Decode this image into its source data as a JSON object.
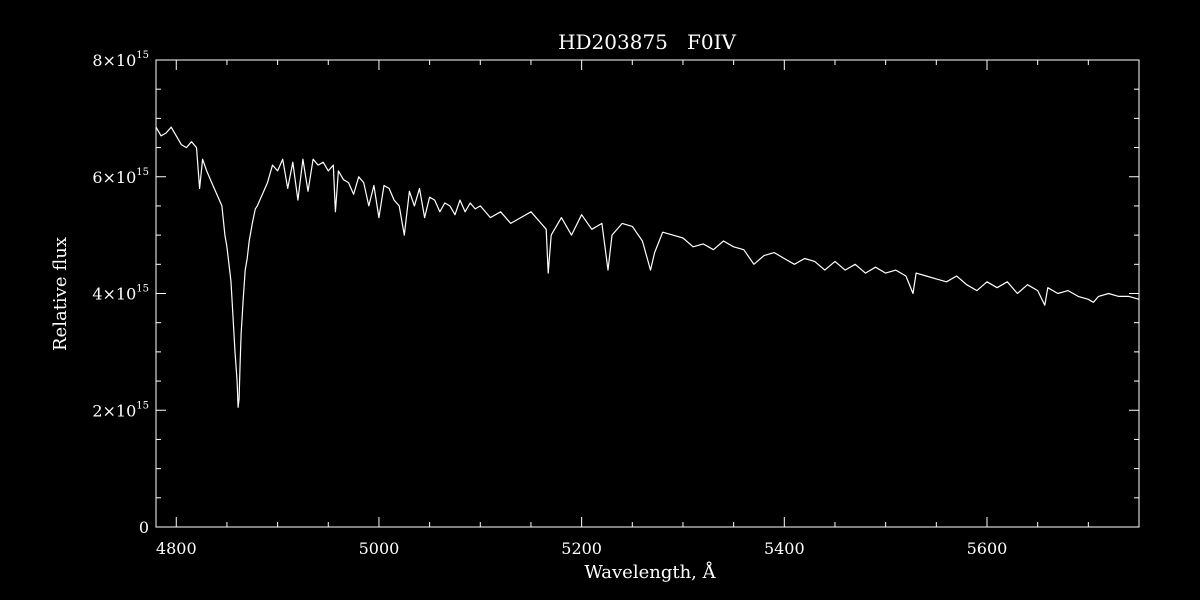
{
  "chart_data": {
    "type": "line",
    "title": "HD203875   F0IV",
    "xlabel": "Wavelength, Å",
    "ylabel": "Relative flux",
    "xlim": [
      4780,
      5750
    ],
    "ylim": [
      0,
      8000000000000000.0
    ],
    "grid": false,
    "x_ticks": [
      4800,
      5000,
      5200,
      5400,
      5600
    ],
    "x_tick_labels": [
      "4800",
      "5000",
      "5200",
      "5400",
      "5600"
    ],
    "y_ticks": [
      0,
      2000000000000000.0,
      4000000000000000.0,
      6000000000000000.0,
      8000000000000000.0
    ],
    "y_tick_labels": [
      {
        "base": "0",
        "exp": ""
      },
      {
        "base": "2×10",
        "exp": "15"
      },
      {
        "base": "4×10",
        "exp": "15"
      },
      {
        "base": "6×10",
        "exp": "15"
      },
      {
        "base": "8×10",
        "exp": "15"
      }
    ],
    "series": [
      {
        "color": "#ffffff",
        "x": [
          4780,
          4785,
          4790,
          4795,
          4800,
          4805,
          4810,
          4815,
          4820,
          4823,
          4826,
          4830,
          4835,
          4840,
          4845,
          4848,
          4850,
          4852,
          4854,
          4856,
          4858,
          4860,
          4861,
          4862,
          4863,
          4864,
          4866,
          4868,
          4870,
          4872,
          4875,
          4878,
          4880,
          4885,
          4890,
          4895,
          4900,
          4905,
          4910,
          4915,
          4920,
          4925,
          4930,
          4935,
          4940,
          4945,
          4950,
          4955,
          4957,
          4960,
          4965,
          4970,
          4975,
          4980,
          4985,
          4990,
          4995,
          5000,
          5005,
          5010,
          5015,
          5020,
          5025,
          5030,
          5035,
          5040,
          5045,
          5050,
          5055,
          5060,
          5065,
          5070,
          5075,
          5080,
          5085,
          5090,
          5095,
          5100,
          5110,
          5120,
          5130,
          5140,
          5150,
          5160,
          5165,
          5167,
          5170,
          5180,
          5190,
          5200,
          5210,
          5220,
          5226,
          5230,
          5240,
          5250,
          5260,
          5268,
          5272,
          5280,
          5290,
          5300,
          5310,
          5320,
          5330,
          5340,
          5350,
          5360,
          5370,
          5380,
          5390,
          5400,
          5410,
          5420,
          5430,
          5440,
          5450,
          5460,
          5470,
          5480,
          5490,
          5500,
          5510,
          5520,
          5527,
          5530,
          5540,
          5550,
          5560,
          5570,
          5580,
          5590,
          5600,
          5610,
          5620,
          5630,
          5640,
          5650,
          5657,
          5660,
          5670,
          5680,
          5690,
          5700,
          5705,
          5710,
          5720,
          5730,
          5740,
          5750
        ],
        "y": [
          6850000000000000.0,
          6700000000000000.0,
          6750000000000000.0,
          6850000000000000.0,
          6700000000000000.0,
          6550000000000000.0,
          6500000000000000.0,
          6600000000000000.0,
          6500000000000000.0,
          5800000000000000.0,
          6300000000000000.0,
          6100000000000000.0,
          5900000000000000.0,
          5700000000000000.0,
          5500000000000000.0,
          5000000000000000.0,
          4800000000000000.0,
          4500000000000000.0,
          4200000000000000.0,
          3600000000000000.0,
          3000000000000000.0,
          2500000000000000.0,
          2050000000000000.0,
          2200000000000000.0,
          2800000000000000.0,
          3300000000000000.0,
          3900000000000000.0,
          4400000000000000.0,
          4600000000000000.0,
          4900000000000000.0,
          5200000000000000.0,
          5450000000000000.0,
          5500000000000000.0,
          5700000000000000.0,
          5900000000000000.0,
          6200000000000000.0,
          6100000000000000.0,
          6300000000000000.0,
          5800000000000000.0,
          6250000000000000.0,
          5600000000000000.0,
          6300000000000000.0,
          5750000000000000.0,
          6300000000000000.0,
          6200000000000000.0,
          6250000000000000.0,
          6100000000000000.0,
          6200000000000000.0,
          5400000000000000.0,
          6100000000000000.0,
          5950000000000000.0,
          5900000000000000.0,
          5700000000000000.0,
          6000000000000000.0,
          5900000000000000.0,
          5500000000000000.0,
          5850000000000000.0,
          5300000000000000.0,
          5850000000000000.0,
          5800000000000000.0,
          5600000000000000.0,
          5500000000000000.0,
          5000000000000000.0,
          5750000000000000.0,
          5500000000000000.0,
          5800000000000000.0,
          5300000000000000.0,
          5650000000000000.0,
          5600000000000000.0,
          5400000000000000.0,
          5550000000000000.0,
          5500000000000000.0,
          5350000000000000.0,
          5600000000000000.0,
          5400000000000000.0,
          5550000000000000.0,
          5450000000000000.0,
          5500000000000000.0,
          5300000000000000.0,
          5400000000000000.0,
          5200000000000000.0,
          5300000000000000.0,
          5400000000000000.0,
          5200000000000000.0,
          5100000000000000.0,
          4350000000000000.0,
          5000000000000000.0,
          5300000000000000.0,
          5000000000000000.0,
          5350000000000000.0,
          5100000000000000.0,
          5200000000000000.0,
          4400000000000000.0,
          5000000000000000.0,
          5200000000000000.0,
          5150000000000000.0,
          4900000000000000.0,
          4400000000000000.0,
          4700000000000000.0,
          5050000000000000.0,
          5000000000000000.0,
          4950000000000000.0,
          4800000000000000.0,
          4850000000000000.0,
          4750000000000000.0,
          4900000000000000.0,
          4800000000000000.0,
          4750000000000000.0,
          4500000000000000.0,
          4650000000000000.0,
          4700000000000000.0,
          4600000000000000.0,
          4500000000000000.0,
          4600000000000000.0,
          4550000000000000.0,
          4400000000000000.0,
          4550000000000000.0,
          4400000000000000.0,
          4500000000000000.0,
          4350000000000000.0,
          4450000000000000.0,
          4350000000000000.0,
          4400000000000000.0,
          4300000000000000.0,
          4000000000000000.0,
          4350000000000000.0,
          4300000000000000.0,
          4250000000000000.0,
          4200000000000000.0,
          4300000000000000.0,
          4150000000000000.0,
          4050000000000000.0,
          4200000000000000.0,
          4100000000000000.0,
          4200000000000000.0,
          4000000000000000.0,
          4150000000000000.0,
          4050000000000000.0,
          3800000000000000.0,
          4100000000000000.0,
          4000000000000000.0,
          4050000000000000.0,
          3950000000000000.0,
          3900000000000000.0,
          3850000000000000.0,
          3950000000000000.0,
          4000000000000000.0,
          3950000000000000.0,
          3950000000000000.0,
          3900000000000000.0
        ]
      }
    ]
  }
}
